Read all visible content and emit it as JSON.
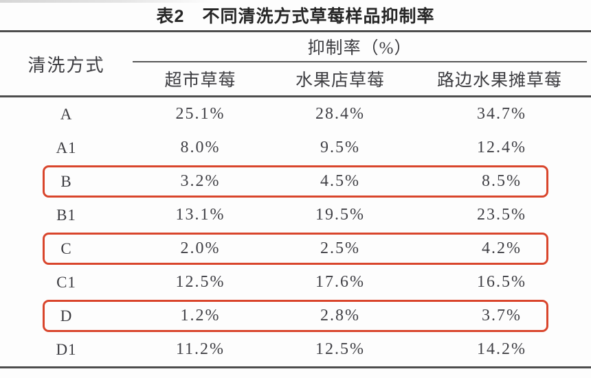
{
  "title": "表2　不同清洗方式草莓样品抑制率",
  "table": {
    "col_header_left": "清洗方式",
    "span_header": "抑制率（%）",
    "sub_headers": [
      "超市草莓",
      "水果店草莓",
      "路边水果摊草莓"
    ],
    "rows": [
      {
        "label": "A",
        "values": [
          "25.1%",
          "28.4%",
          "34.7%"
        ],
        "highlighted": false
      },
      {
        "label": "A1",
        "values": [
          "8.0%",
          "9.5%",
          "12.4%"
        ],
        "highlighted": false
      },
      {
        "label": "B",
        "values": [
          "3.2%",
          "4.5%",
          "8.5%"
        ],
        "highlighted": true
      },
      {
        "label": "B1",
        "values": [
          "13.1%",
          "19.5%",
          "23.5%"
        ],
        "highlighted": false
      },
      {
        "label": "C",
        "values": [
          "2.0%",
          "2.5%",
          "4.2%"
        ],
        "highlighted": true
      },
      {
        "label": "C1",
        "values": [
          "12.5%",
          "17.6%",
          "16.5%"
        ],
        "highlighted": false
      },
      {
        "label": "D",
        "values": [
          "1.2%",
          "2.8%",
          "3.7%"
        ],
        "highlighted": true
      },
      {
        "label": "D1",
        "values": [
          "11.2%",
          "12.5%",
          "14.2%"
        ],
        "highlighted": false
      }
    ],
    "highlight_color": "#d9452c",
    "rule_color": "#4d4d4d"
  },
  "chart_data": {
    "type": "table",
    "title": "表2 不同清洗方式草莓样品抑制率",
    "unit": "抑制率（%）",
    "columns": [
      "清洗方式",
      "超市草莓",
      "水果店草莓",
      "路边水果摊草莓"
    ],
    "rows": [
      [
        "A",
        25.1,
        28.4,
        34.7
      ],
      [
        "A1",
        8.0,
        9.5,
        12.4
      ],
      [
        "B",
        3.2,
        4.5,
        8.5
      ],
      [
        "B1",
        13.1,
        19.5,
        23.5
      ],
      [
        "C",
        2.0,
        2.5,
        4.2
      ],
      [
        "C1",
        12.5,
        17.6,
        16.5
      ],
      [
        "D",
        1.2,
        2.8,
        3.7
      ],
      [
        "D1",
        11.2,
        12.5,
        14.2
      ]
    ],
    "highlighted_rows": [
      "B",
      "C",
      "D"
    ]
  }
}
